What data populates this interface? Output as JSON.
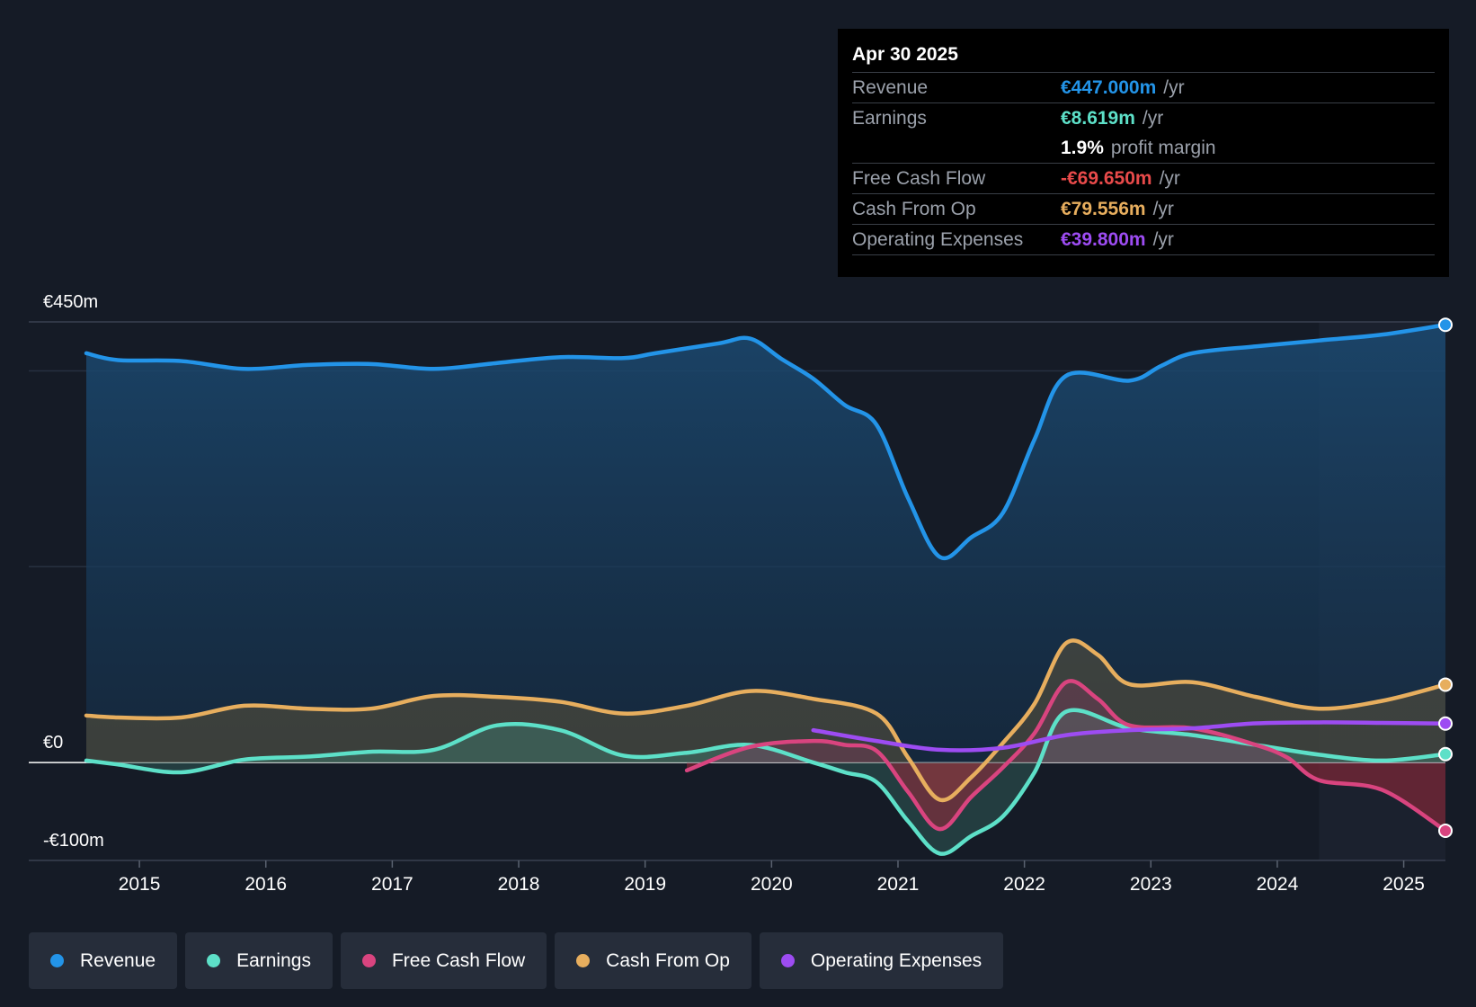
{
  "chart_data": {
    "type": "line",
    "y_axis": {
      "top_label": "€450m",
      "zero_label": "€0",
      "bottom_label": "-€100m",
      "ylim": [
        -100,
        450
      ]
    },
    "x_ticks": [
      "2015",
      "2016",
      "2017",
      "2018",
      "2019",
      "2020",
      "2021",
      "2022",
      "2023",
      "2024",
      "2025"
    ],
    "x_range": [
      2014.58,
      2025.33
    ],
    "forecast_shade_from": 2024.33,
    "series": [
      {
        "name": "Revenue",
        "key": "revenue",
        "color": "#2394e8",
        "fill": true,
        "points": [
          [
            2014.58,
            418
          ],
          [
            2014.83,
            411
          ],
          [
            2015.33,
            410
          ],
          [
            2015.83,
            402
          ],
          [
            2016.33,
            406
          ],
          [
            2016.83,
            407
          ],
          [
            2017.33,
            402
          ],
          [
            2017.83,
            408
          ],
          [
            2018.33,
            414
          ],
          [
            2018.83,
            413
          ],
          [
            2019.08,
            418
          ],
          [
            2019.58,
            428
          ],
          [
            2019.83,
            433
          ],
          [
            2020.08,
            412
          ],
          [
            2020.33,
            392
          ],
          [
            2020.58,
            365
          ],
          [
            2020.83,
            345
          ],
          [
            2021.08,
            270
          ],
          [
            2021.33,
            210
          ],
          [
            2021.58,
            230
          ],
          [
            2021.83,
            255
          ],
          [
            2022.08,
            330
          ],
          [
            2022.33,
            395
          ],
          [
            2022.83,
            390
          ],
          [
            2023.08,
            405
          ],
          [
            2023.33,
            418
          ],
          [
            2023.83,
            425
          ],
          [
            2024.33,
            431
          ],
          [
            2024.83,
            437
          ],
          [
            2025.33,
            447
          ]
        ]
      },
      {
        "name": "Earnings",
        "key": "earnings",
        "color": "#5de0c8",
        "fill": true,
        "points": [
          [
            2014.58,
            2
          ],
          [
            2014.83,
            -2
          ],
          [
            2015.33,
            -10
          ],
          [
            2015.83,
            3
          ],
          [
            2016.33,
            6
          ],
          [
            2016.83,
            11
          ],
          [
            2017.33,
            13
          ],
          [
            2017.83,
            38
          ],
          [
            2018.33,
            33
          ],
          [
            2018.83,
            7
          ],
          [
            2019.33,
            10
          ],
          [
            2019.83,
            18
          ],
          [
            2020.33,
            0
          ],
          [
            2020.58,
            -10
          ],
          [
            2020.83,
            -20
          ],
          [
            2021.08,
            -60
          ],
          [
            2021.33,
            -93
          ],
          [
            2021.58,
            -75
          ],
          [
            2021.83,
            -55
          ],
          [
            2022.08,
            -10
          ],
          [
            2022.33,
            52
          ],
          [
            2022.83,
            35
          ],
          [
            2023.33,
            28
          ],
          [
            2023.83,
            18
          ],
          [
            2024.33,
            8
          ],
          [
            2024.83,
            2
          ],
          [
            2025.33,
            8.6
          ]
        ]
      },
      {
        "name": "Free Cash Flow",
        "key": "fcf",
        "color": "#d9447f",
        "fill": true,
        "points": [
          [
            2019.33,
            -8
          ],
          [
            2019.83,
            16
          ],
          [
            2020.33,
            22
          ],
          [
            2020.58,
            18
          ],
          [
            2020.83,
            12
          ],
          [
            2021.08,
            -30
          ],
          [
            2021.33,
            -68
          ],
          [
            2021.58,
            -35
          ],
          [
            2021.83,
            -5
          ],
          [
            2022.08,
            30
          ],
          [
            2022.33,
            82
          ],
          [
            2022.58,
            65
          ],
          [
            2022.83,
            38
          ],
          [
            2023.33,
            35
          ],
          [
            2023.83,
            18
          ],
          [
            2024.08,
            5
          ],
          [
            2024.33,
            -18
          ],
          [
            2024.83,
            -28
          ],
          [
            2025.33,
            -69.65
          ]
        ]
      },
      {
        "name": "Cash From Op",
        "key": "cfo",
        "color": "#e7ae5e",
        "fill": true,
        "points": [
          [
            2014.58,
            48
          ],
          [
            2014.83,
            46
          ],
          [
            2015.33,
            46
          ],
          [
            2015.83,
            58
          ],
          [
            2016.33,
            55
          ],
          [
            2016.83,
            55
          ],
          [
            2017.33,
            68
          ],
          [
            2017.83,
            67
          ],
          [
            2018.33,
            62
          ],
          [
            2018.83,
            50
          ],
          [
            2019.33,
            58
          ],
          [
            2019.83,
            73
          ],
          [
            2020.33,
            65
          ],
          [
            2020.83,
            50
          ],
          [
            2021.08,
            5
          ],
          [
            2021.33,
            -38
          ],
          [
            2021.58,
            -15
          ],
          [
            2021.83,
            20
          ],
          [
            2022.08,
            60
          ],
          [
            2022.33,
            122
          ],
          [
            2022.58,
            110
          ],
          [
            2022.83,
            80
          ],
          [
            2023.33,
            82
          ],
          [
            2023.83,
            67
          ],
          [
            2024.33,
            55
          ],
          [
            2024.83,
            63
          ],
          [
            2025.33,
            79.556
          ]
        ]
      },
      {
        "name": "Operating Expenses",
        "key": "opex",
        "color": "#9d4cf2",
        "fill": false,
        "points": [
          [
            2020.33,
            33
          ],
          [
            2020.83,
            22
          ],
          [
            2021.33,
            13
          ],
          [
            2021.83,
            15
          ],
          [
            2022.33,
            28
          ],
          [
            2022.83,
            33
          ],
          [
            2023.33,
            35
          ],
          [
            2023.83,
            40
          ],
          [
            2024.33,
            41
          ],
          [
            2024.83,
            40.5
          ],
          [
            2025.33,
            39.8
          ]
        ]
      }
    ]
  },
  "tooltip": {
    "date": "Apr 30 2025",
    "rows": [
      {
        "label": "Revenue",
        "value": "€447.000m",
        "unit": "/yr",
        "color": "#2394e8"
      },
      {
        "label": "Earnings",
        "value": "€8.619m",
        "unit": "/yr",
        "color": "#5de0c8"
      },
      {
        "label": "",
        "value": "1.9%",
        "unit": "profit margin",
        "color": "#ffffff"
      },
      {
        "label": "Free Cash Flow",
        "value": "-€69.650m",
        "unit": "/yr",
        "color": "#e84a4a"
      },
      {
        "label": "Cash From Op",
        "value": "€79.556m",
        "unit": "/yr",
        "color": "#e7ae5e"
      },
      {
        "label": "Operating Expenses",
        "value": "€39.800m",
        "unit": "/yr",
        "color": "#9d4cf2"
      }
    ]
  },
  "legend": [
    {
      "label": "Revenue",
      "color": "#2394e8"
    },
    {
      "label": "Earnings",
      "color": "#5de0c8"
    },
    {
      "label": "Free Cash Flow",
      "color": "#d9447f"
    },
    {
      "label": "Cash From Op",
      "color": "#e7ae5e"
    },
    {
      "label": "Operating Expenses",
      "color": "#9d4cf2"
    }
  ]
}
